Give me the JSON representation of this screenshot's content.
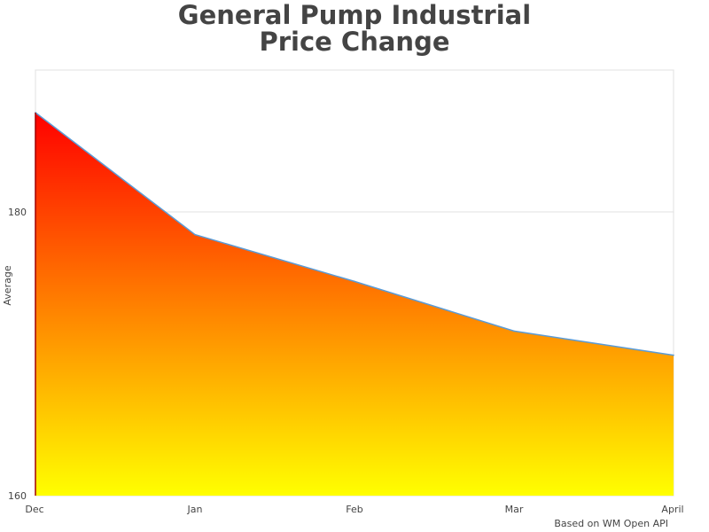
{
  "title_line1": "General Pump Industrial",
  "title_line2": "Price Change",
  "credit": "Based on WM Open API",
  "chart_data": {
    "type": "area",
    "title": "General Pump Industrial Price Change",
    "xlabel": "",
    "ylabel": "Average",
    "categories": [
      "Dec",
      "Jan",
      "Feb",
      "Mar",
      "April"
    ],
    "values": [
      187,
      178.4,
      175.1,
      171.6,
      169.9
    ],
    "ylim": [
      160,
      190
    ],
    "yticks": [
      160,
      180
    ],
    "grid": true,
    "legend": "none",
    "colors": {
      "fill_top": "#ff0000",
      "fill_bottom": "#ffff00",
      "line": "#5b9bd5",
      "grid": "#e0e0e0"
    }
  }
}
